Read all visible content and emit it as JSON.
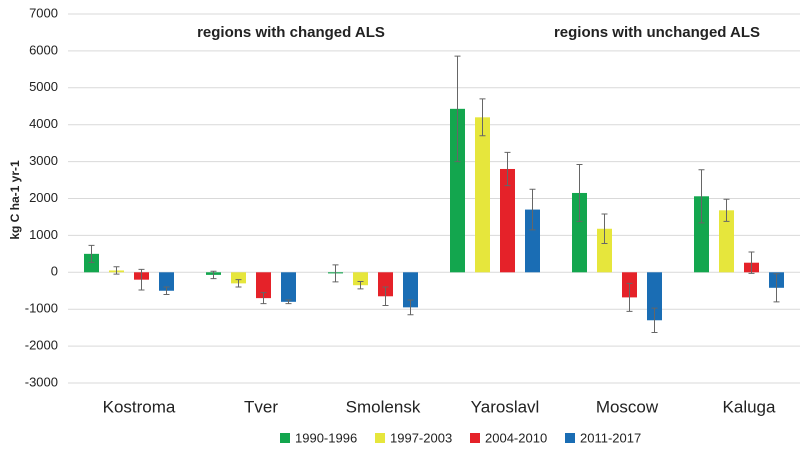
{
  "chart_data": {
    "type": "bar",
    "y_label": "kg C ha-1 yr-1",
    "annotations": [
      "regions with changed ALS",
      "regions with unchanged ALS"
    ],
    "categories": [
      "Kostroma",
      "Tver",
      "Smolensk",
      "Yaroslavl",
      "Moscow",
      "Kaluga"
    ],
    "series": [
      {
        "name": "1990-1996",
        "color": "#13a64e",
        "values": [
          500,
          -70,
          -30,
          4430,
          2150,
          2060
        ],
        "errors": [
          230,
          100,
          230,
          1430,
          770,
          720
        ]
      },
      {
        "name": "1997-2003",
        "color": "#e6e63c",
        "values": [
          50,
          -300,
          -350,
          4200,
          1180,
          1680
        ],
        "errors": [
          100,
          100,
          100,
          500,
          400,
          300
        ]
      },
      {
        "name": "2004-2010",
        "color": "#e52229",
        "values": [
          -200,
          -700,
          -650,
          2800,
          -680,
          260
        ],
        "errors": [
          280,
          150,
          250,
          450,
          380,
          290
        ]
      },
      {
        "name": "2011-2017",
        "color": "#1a6db4",
        "values": [
          -500,
          -800,
          -950,
          1700,
          -1300,
          -420
        ],
        "errors": [
          100,
          50,
          200,
          550,
          330,
          380
        ]
      }
    ],
    "ylim": [
      -3000,
      7000
    ],
    "yticks": [
      -3000,
      -2000,
      -1000,
      0,
      1000,
      2000,
      3000,
      4000,
      5000,
      6000,
      7000
    ],
    "grid": true
  }
}
